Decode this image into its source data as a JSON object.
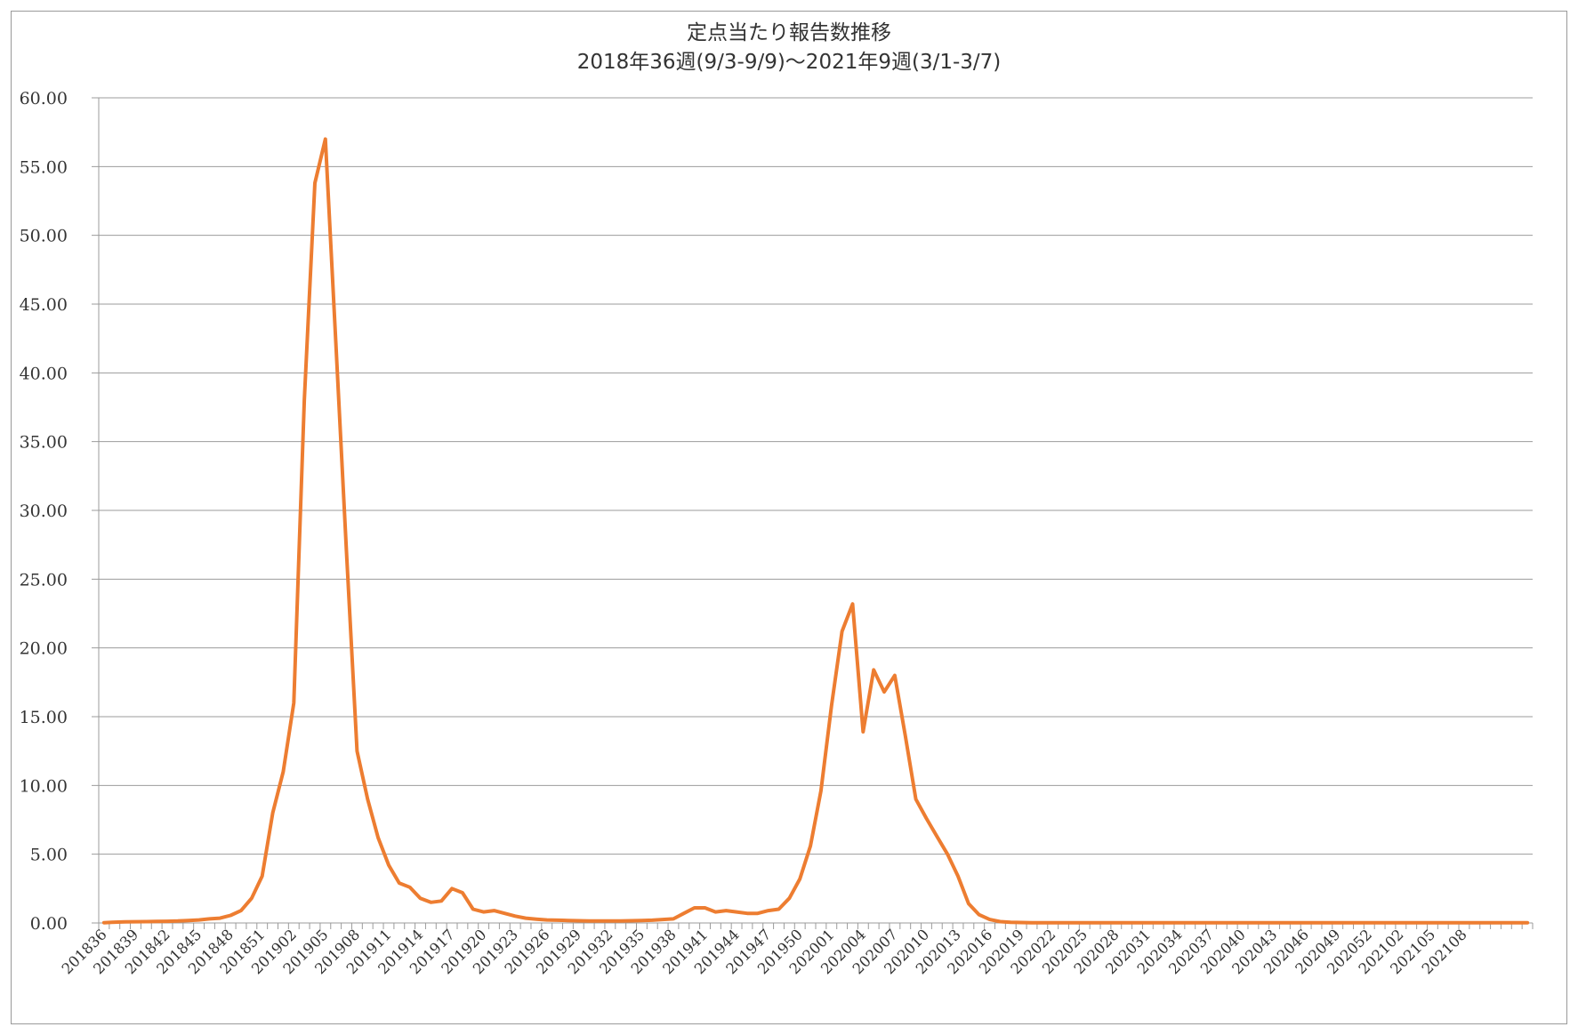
{
  "chart_data": {
    "type": "line",
    "title": "定点当たり報告数推移",
    "subtitle": "2018年36週(9/3-9/9)〜2021年9週(3/1-3/7)",
    "xlabel": "",
    "ylabel": "",
    "ylim": [
      0,
      60
    ],
    "yticks": [
      "0.00",
      "5.00",
      "10.00",
      "15.00",
      "20.00",
      "25.00",
      "30.00",
      "35.00",
      "40.00",
      "45.00",
      "50.00",
      "55.00",
      "60.00"
    ],
    "grid": true,
    "legend": "none",
    "line_color": "#ed7d31",
    "x_tick_labels": [
      "201836",
      "201839",
      "201842",
      "201845",
      "201848",
      "201851",
      "201902",
      "201905",
      "201908",
      "201911",
      "201914",
      "201917",
      "201920",
      "201923",
      "201926",
      "201929",
      "201932",
      "201935",
      "201938",
      "201941",
      "201944",
      "201947",
      "201950",
      "202001",
      "202004",
      "202007",
      "202010",
      "202013",
      "202016",
      "202019",
      "202022",
      "202025",
      "202028",
      "202031",
      "202034",
      "202037",
      "202040",
      "202043",
      "202046",
      "202049",
      "202052",
      "202102",
      "202105",
      "202108"
    ],
    "series": [
      {
        "values": [
          0.02,
          0.06,
          0.08,
          0.09,
          0.1,
          0.11,
          0.12,
          0.14,
          0.18,
          0.22,
          0.3,
          0.35,
          0.55,
          0.9,
          1.8,
          3.4,
          8.0,
          11.0,
          16.0,
          38.0,
          53.8,
          57.0,
          42.0,
          27.0,
          12.5,
          9.0,
          6.2,
          4.2,
          2.9,
          2.6,
          1.8,
          1.5,
          1.6,
          2.5,
          2.2,
          1.0,
          0.8,
          0.9,
          0.7,
          0.5,
          0.35,
          0.28,
          0.22,
          0.2,
          0.18,
          0.16,
          0.15,
          0.14,
          0.14,
          0.15,
          0.16,
          0.18,
          0.2,
          0.25,
          0.3,
          0.7,
          1.1,
          1.1,
          0.8,
          0.9,
          0.8,
          0.7,
          0.7,
          0.9,
          1.0,
          1.8,
          3.2,
          5.6,
          9.6,
          15.8,
          21.2,
          23.2,
          13.9,
          18.4,
          16.8,
          18.0,
          13.6,
          9.0,
          7.6,
          6.3,
          5.0,
          3.4,
          1.4,
          0.6,
          0.25,
          0.1,
          0.05,
          0.03,
          0.02,
          0.02,
          0.02,
          0.02,
          0.02,
          0.02,
          0.02,
          0.02,
          0.02,
          0.02,
          0.02,
          0.02,
          0.02,
          0.02,
          0.02,
          0.02,
          0.02,
          0.02,
          0.02,
          0.02,
          0.02,
          0.02,
          0.02,
          0.02,
          0.02,
          0.02,
          0.02,
          0.02,
          0.02,
          0.02,
          0.02,
          0.02,
          0.02,
          0.02,
          0.02,
          0.02,
          0.02,
          0.02,
          0.02,
          0.02,
          0.02,
          0.02,
          0.02,
          0.02,
          0.02,
          0.02,
          0.02,
          0.02
        ]
      }
    ]
  }
}
